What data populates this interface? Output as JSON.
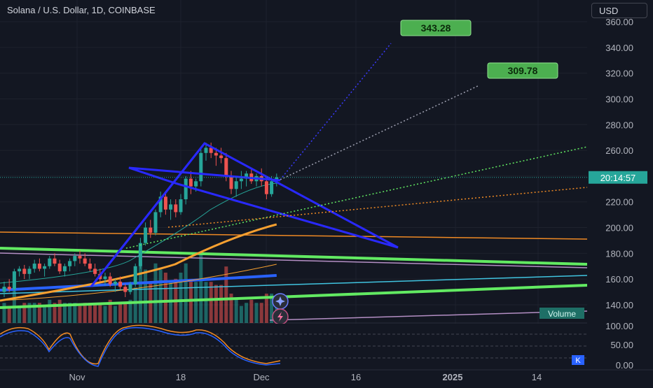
{
  "header": {
    "title": "Solana / U.S. Dollar, 1D, COINBASE",
    "currency": "USD"
  },
  "colors": {
    "bg": "#131722",
    "grid": "#1e222d",
    "up": "#26a69a",
    "down": "#ef5350",
    "pattern": "#2929ff",
    "green_line": "#62ea62"
  },
  "chart_data": {
    "type": "candlestick",
    "title": "Solana / U.S. Dollar, 1D, COINBASE",
    "ylim": [
      120,
      362
    ],
    "y_ticks": [
      "360.00",
      "340.00",
      "320.00",
      "300.00",
      "280.00",
      "260.00",
      "240.00",
      "220.00",
      "200.00",
      "180.00",
      "160.00",
      "140.00"
    ],
    "x_ticks": [
      "Nov",
      "18",
      "Dec",
      "16",
      "2025",
      "14"
    ],
    "current_price_label": "20:14:57",
    "targets": [
      {
        "label": "343.28",
        "value": 343.28
      },
      {
        "label": "309.78",
        "value": 309.78
      }
    ],
    "volume_label": "Volume",
    "candles": [
      {
        "o": 150,
        "h": 158,
        "l": 146,
        "c": 154
      },
      {
        "o": 154,
        "h": 160,
        "l": 150,
        "c": 152
      },
      {
        "o": 152,
        "h": 168,
        "l": 150,
        "c": 166
      },
      {
        "o": 166,
        "h": 170,
        "l": 162,
        "c": 168
      },
      {
        "o": 168,
        "h": 171,
        "l": 160,
        "c": 164
      },
      {
        "o": 164,
        "h": 170,
        "l": 160,
        "c": 168
      },
      {
        "o": 168,
        "h": 175,
        "l": 165,
        "c": 172
      },
      {
        "o": 172,
        "h": 176,
        "l": 166,
        "c": 168
      },
      {
        "o": 168,
        "h": 172,
        "l": 162,
        "c": 170
      },
      {
        "o": 170,
        "h": 178,
        "l": 168,
        "c": 176
      },
      {
        "o": 176,
        "h": 180,
        "l": 170,
        "c": 172
      },
      {
        "o": 172,
        "h": 175,
        "l": 164,
        "c": 166
      },
      {
        "o": 166,
        "h": 172,
        "l": 162,
        "c": 170
      },
      {
        "o": 170,
        "h": 176,
        "l": 166,
        "c": 174
      },
      {
        "o": 174,
        "h": 180,
        "l": 170,
        "c": 178
      },
      {
        "o": 178,
        "h": 182,
        "l": 172,
        "c": 176
      },
      {
        "o": 176,
        "h": 180,
        "l": 170,
        "c": 172
      },
      {
        "o": 172,
        "h": 176,
        "l": 166,
        "c": 168
      },
      {
        "o": 168,
        "h": 172,
        "l": 162,
        "c": 164
      },
      {
        "o": 164,
        "h": 168,
        "l": 158,
        "c": 160
      },
      {
        "o": 160,
        "h": 165,
        "l": 155,
        "c": 162
      },
      {
        "o": 162,
        "h": 165,
        "l": 154,
        "c": 156
      },
      {
        "o": 156,
        "h": 160,
        "l": 150,
        "c": 158
      },
      {
        "o": 158,
        "h": 162,
        "l": 152,
        "c": 154
      },
      {
        "o": 154,
        "h": 156,
        "l": 146,
        "c": 150
      },
      {
        "o": 150,
        "h": 158,
        "l": 148,
        "c": 156
      },
      {
        "o": 156,
        "h": 172,
        "l": 154,
        "c": 170
      },
      {
        "o": 170,
        "h": 192,
        "l": 168,
        "c": 188
      },
      {
        "o": 188,
        "h": 204,
        "l": 186,
        "c": 200
      },
      {
        "o": 200,
        "h": 206,
        "l": 192,
        "c": 196
      },
      {
        "o": 196,
        "h": 214,
        "l": 194,
        "c": 212
      },
      {
        "o": 212,
        "h": 228,
        "l": 208,
        "c": 224
      },
      {
        "o": 224,
        "h": 228,
        "l": 210,
        "c": 214
      },
      {
        "o": 214,
        "h": 222,
        "l": 206,
        "c": 218
      },
      {
        "o": 218,
        "h": 222,
        "l": 208,
        "c": 212
      },
      {
        "o": 212,
        "h": 226,
        "l": 210,
        "c": 222
      },
      {
        "o": 222,
        "h": 240,
        "l": 218,
        "c": 238
      },
      {
        "o": 238,
        "h": 244,
        "l": 226,
        "c": 232
      },
      {
        "o": 232,
        "h": 238,
        "l": 228,
        "c": 236
      },
      {
        "o": 236,
        "h": 262,
        "l": 232,
        "c": 258
      },
      {
        "o": 258,
        "h": 266,
        "l": 252,
        "c": 262
      },
      {
        "o": 262,
        "h": 266,
        "l": 254,
        "c": 258
      },
      {
        "o": 258,
        "h": 262,
        "l": 248,
        "c": 256
      },
      {
        "o": 256,
        "h": 262,
        "l": 250,
        "c": 254
      },
      {
        "o": 254,
        "h": 258,
        "l": 236,
        "c": 240
      },
      {
        "o": 240,
        "h": 244,
        "l": 226,
        "c": 230
      },
      {
        "o": 230,
        "h": 240,
        "l": 224,
        "c": 236
      },
      {
        "o": 236,
        "h": 244,
        "l": 230,
        "c": 238
      },
      {
        "o": 238,
        "h": 244,
        "l": 232,
        "c": 242
      },
      {
        "o": 242,
        "h": 246,
        "l": 234,
        "c": 236
      },
      {
        "o": 236,
        "h": 242,
        "l": 232,
        "c": 240
      },
      {
        "o": 240,
        "h": 246,
        "l": 232,
        "c": 236
      },
      {
        "o": 236,
        "h": 240,
        "l": 222,
        "c": 226
      },
      {
        "o": 226,
        "h": 240,
        "l": 224,
        "c": 236
      },
      {
        "o": 236,
        "h": 242,
        "l": 232,
        "c": 239
      }
    ]
  }
}
